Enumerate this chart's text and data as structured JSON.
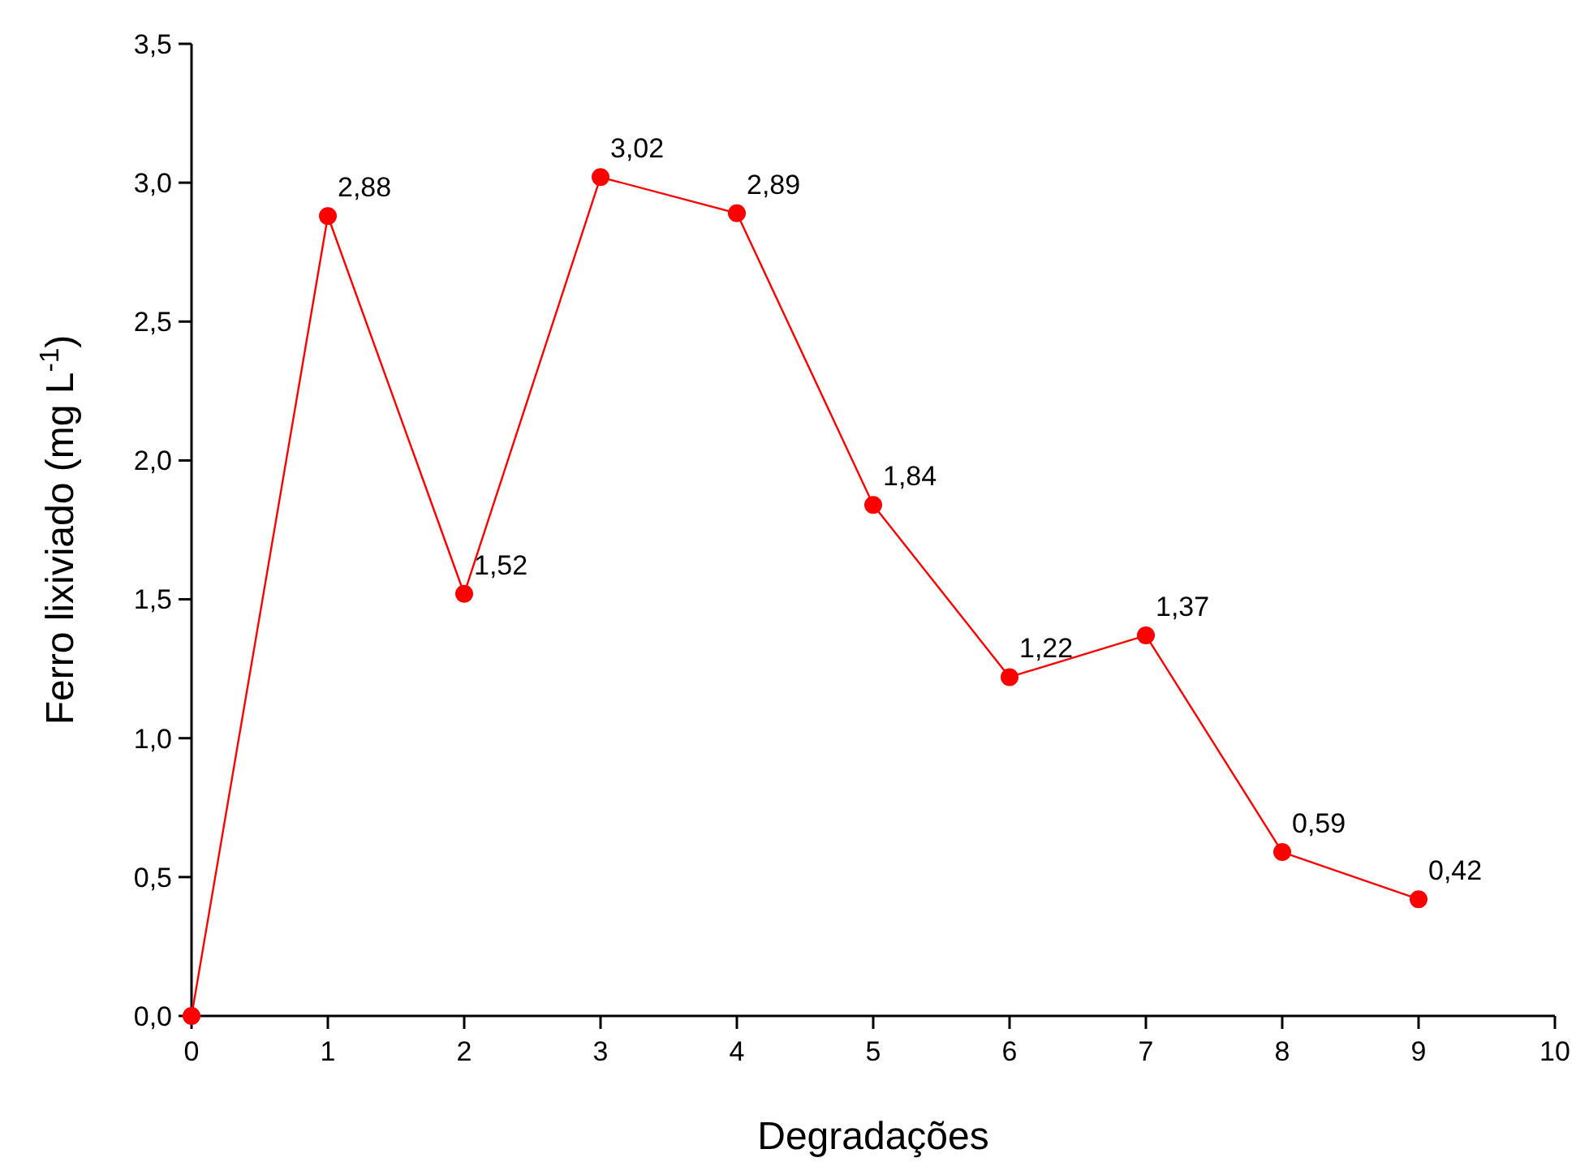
{
  "chart_data": {
    "type": "line",
    "xlabel": "Degradações",
    "ylabel": "Ferro lixiviado (mg L$^{-1}$)",
    "x": [
      0,
      1,
      2,
      3,
      4,
      5,
      6,
      7,
      8,
      9
    ],
    "series": [
      {
        "color": "#ff0000",
        "values": [
          0,
          2.88,
          1.52,
          3.02,
          2.89,
          1.84,
          1.22,
          1.37,
          0.59,
          0.42
        ],
        "value_labels": [
          null,
          "2,88",
          "1,52",
          "3,02",
          "2,89",
          "1,84",
          "1,22",
          "1,37",
          "0,59",
          "0,42"
        ]
      }
    ],
    "marker": "circle",
    "line_style": "solid",
    "grid": false,
    "xlim": [
      0,
      10
    ],
    "xticks": [
      0,
      1,
      2,
      3,
      4,
      5,
      6,
      7,
      8,
      9,
      10
    ],
    "ylim": [
      0,
      3.5
    ],
    "yticks": [
      {
        "value": 0,
        "label": "0,0"
      },
      {
        "value": 0.5,
        "label": "0,5"
      },
      {
        "value": 1,
        "label": "1,0"
      },
      {
        "value": 1.5,
        "label": "1,5"
      },
      {
        "value": 2,
        "label": "2,0"
      },
      {
        "value": 2.5,
        "label": "2,5"
      },
      {
        "value": 3,
        "label": "3,0"
      },
      {
        "value": 3.5,
        "label": "3,5"
      }
    ]
  }
}
